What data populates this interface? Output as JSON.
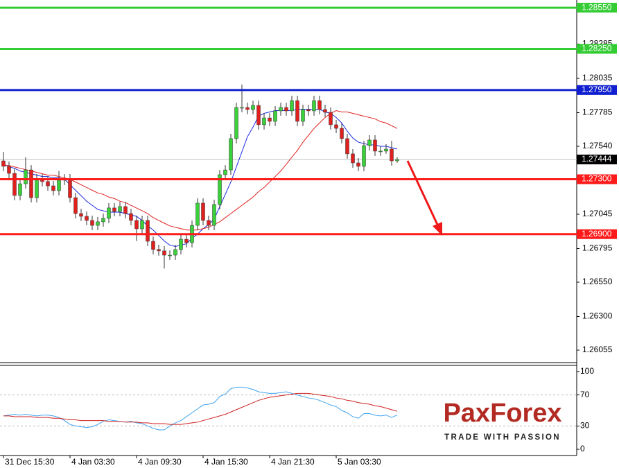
{
  "chart_data": [
    {
      "type": "candlestick",
      "categories": [
        "31 Dec 15:30",
        null,
        null,
        null,
        null,
        null,
        null,
        null,
        null,
        null,
        null,
        null,
        "4 Jan 03:30",
        null,
        null,
        null,
        null,
        null,
        null,
        null,
        null,
        null,
        null,
        null,
        "4 Jan 09:30",
        null,
        null,
        null,
        null,
        null,
        null,
        null,
        null,
        null,
        null,
        null,
        "4 Jan 15:30",
        null,
        null,
        null,
        null,
        null,
        null,
        null,
        null,
        null,
        null,
        null,
        "4 Jan 21:30",
        null,
        null,
        null,
        null,
        null,
        null,
        null,
        null,
        null,
        null,
        null,
        "5 Jan 03:30",
        null,
        null,
        null,
        null,
        null,
        null,
        null,
        null,
        null,
        null,
        null
      ],
      "open": [
        1.27434,
        1.27394,
        1.27343,
        1.27182,
        1.27267,
        1.27368,
        1.27166,
        1.27303,
        1.27283,
        1.27252,
        1.27217,
        1.27293,
        1.27303,
        1.27166,
        1.2705,
        1.2703,
        1.27,
        1.26964,
        1.2699,
        1.27015,
        1.27091,
        1.27065,
        1.27101,
        1.2705,
        1.27,
        1.26939,
        1.27,
        1.26848,
        1.26788,
        1.26778,
        1.26747,
        1.26747,
        1.26788,
        1.26863,
        1.26838,
        1.26964,
        1.27126,
        1.27,
        1.26964,
        1.27116,
        1.27333,
        1.27368,
        1.27596,
        1.27823,
        1.27823,
        1.27808,
        1.27838,
        1.27697,
        1.27747,
        1.27722,
        1.27798,
        1.27823,
        1.27798,
        1.27873,
        1.27722,
        1.27808,
        1.27798,
        1.27873,
        1.27808,
        1.27788,
        1.27697,
        1.27671,
        1.27596,
        1.27485,
        1.27419,
        1.27394,
        1.27545,
        1.27586,
        1.27505,
        1.27505,
        1.2752,
        1.27434
      ],
      "high": [
        1.275,
        1.27429,
        1.27378,
        1.27302,
        1.2746,
        1.27403,
        1.27338,
        1.27338,
        1.27318,
        1.27287,
        1.2736,
        1.27338,
        1.27338,
        1.27201,
        1.27085,
        1.27065,
        1.27035,
        1.27025,
        1.2705,
        1.27126,
        1.27126,
        1.27136,
        1.27136,
        1.27085,
        1.27035,
        1.27035,
        1.27035,
        1.26883,
        1.26823,
        1.26813,
        1.26782,
        1.26823,
        1.26898,
        1.26898,
        1.26999,
        1.27161,
        1.27161,
        1.27035,
        1.27151,
        1.27368,
        1.27403,
        1.27631,
        1.27858,
        1.2799,
        1.27858,
        1.27873,
        1.27873,
        1.27782,
        1.27782,
        1.27833,
        1.27858,
        1.27858,
        1.27908,
        1.27908,
        1.27843,
        1.27843,
        1.27908,
        1.27908,
        1.27843,
        1.27823,
        1.27732,
        1.27706,
        1.27631,
        1.2752,
        1.27454,
        1.2758,
        1.27621,
        1.27621,
        1.2754,
        1.27555,
        1.2758,
        1.2746
      ],
      "low": [
        1.27359,
        1.27308,
        1.27147,
        1.27147,
        1.27232,
        1.27131,
        1.27131,
        1.27248,
        1.27217,
        1.27182,
        1.27182,
        1.27258,
        1.27131,
        1.27015,
        1.26995,
        1.26965,
        1.26929,
        1.26929,
        1.26955,
        1.2698,
        1.2703,
        1.2703,
        1.27015,
        1.26965,
        1.2685,
        1.26904,
        1.26813,
        1.26753,
        1.26743,
        1.2665,
        1.26712,
        1.26712,
        1.26753,
        1.26803,
        1.26803,
        1.26929,
        1.26965,
        1.26929,
        1.26929,
        1.27081,
        1.27298,
        1.27333,
        1.27561,
        1.27788,
        1.27773,
        1.27773,
        1.27662,
        1.27662,
        1.27687,
        1.27687,
        1.27763,
        1.27763,
        1.27763,
        1.27687,
        1.27687,
        1.27763,
        1.27763,
        1.27773,
        1.27753,
        1.27662,
        1.27636,
        1.27561,
        1.2745,
        1.27384,
        1.27359,
        1.27359,
        1.2751,
        1.2747,
        1.2747,
        1.27485,
        1.27399,
        1.2742
      ],
      "close": [
        1.27394,
        1.27343,
        1.27182,
        1.27267,
        1.27368,
        1.27166,
        1.27303,
        1.27283,
        1.27252,
        1.27217,
        1.27293,
        1.27303,
        1.27166,
        1.2705,
        1.2703,
        1.27,
        1.26964,
        1.2699,
        1.27015,
        1.27091,
        1.27065,
        1.27101,
        1.2705,
        1.27,
        1.26939,
        1.27,
        1.26848,
        1.26788,
        1.26778,
        1.26747,
        1.26747,
        1.26788,
        1.26863,
        1.26838,
        1.26964,
        1.27126,
        1.27,
        1.26964,
        1.27116,
        1.27333,
        1.27368,
        1.27596,
        1.27823,
        1.27823,
        1.27808,
        1.27838,
        1.27697,
        1.27747,
        1.27722,
        1.27798,
        1.27823,
        1.27798,
        1.27873,
        1.27722,
        1.27808,
        1.27798,
        1.27873,
        1.27808,
        1.27788,
        1.27697,
        1.27671,
        1.27596,
        1.27485,
        1.27419,
        1.27394,
        1.27545,
        1.27586,
        1.27505,
        1.27505,
        1.2752,
        1.27434,
        1.27444
      ],
      "up_color": "#3ad13a",
      "down_color": "#e0201e",
      "series": [
        {
          "color": "#1a2be0",
          "values": [
            1.2741,
            1.2739,
            1.2738,
            1.2736,
            1.2735,
            1.2734,
            1.2733,
            1.2732,
            1.2732,
            1.2731,
            1.2731,
            1.273,
            1.2726,
            1.2722,
            1.2718,
            1.2714,
            1.2711,
            1.2708,
            1.2707,
            1.2706,
            1.2706,
            1.2706,
            1.2705,
            1.2704,
            1.2703,
            1.27,
            1.2696,
            1.2693,
            1.2689,
            1.2685,
            1.2682,
            1.2681,
            1.2682,
            1.2683,
            1.2687,
            1.269,
            1.2694,
            1.2697,
            1.2701,
            1.271,
            1.2719,
            1.2728,
            1.2739,
            1.275,
            1.2761,
            1.2768,
            1.2776,
            1.2778,
            1.2779,
            1.278,
            1.278,
            1.278,
            1.278,
            1.2781,
            1.2781,
            1.2781,
            1.2781,
            1.2781,
            1.2779,
            1.2778,
            1.2775,
            1.2771,
            1.2765,
            1.276,
            1.2757,
            1.2756,
            1.2755,
            1.2755,
            1.2754,
            1.2754,
            1.2753,
            1.2752
          ]
        },
        {
          "color": "#e02020",
          "values": [
            1.274,
            1.274,
            1.2739,
            1.2738,
            1.2737,
            1.2736,
            1.2735,
            1.2734,
            1.2733,
            1.2733,
            1.2732,
            1.2731,
            1.273,
            1.2728,
            1.2726,
            1.2724,
            1.2722,
            1.272,
            1.2719,
            1.2717,
            1.2716,
            1.2714,
            1.2713,
            1.2711,
            1.2709,
            1.2707,
            1.2705,
            1.2702,
            1.27,
            1.2698,
            1.2696,
            1.2695,
            1.2694,
            1.2693,
            1.2693,
            1.2693,
            1.2694,
            1.2695,
            1.2697,
            1.2699,
            1.2702,
            1.2705,
            1.2708,
            1.2711,
            1.2714,
            1.2717,
            1.2721,
            1.2724,
            1.2728,
            1.2732,
            1.2736,
            1.2741,
            1.2746,
            1.2751,
            1.2757,
            1.2762,
            1.2767,
            1.2771,
            1.2775,
            1.2778,
            1.278,
            1.2779,
            1.2779,
            1.2778,
            1.2777,
            1.2776,
            1.2775,
            1.2774,
            1.2772,
            1.2771,
            1.2769,
            1.2767
          ]
        }
      ],
      "ylim": [
        1.25964,
        1.28606
      ],
      "yticks": [
        1.28285,
        1.28035,
        {
          "value": 1.27785,
          "label": "1.27785"
        },
        {
          "value": 1.2754,
          "label": "1.27540"
        },
        1.27045,
        1.26795,
        {
          "value": 1.2655,
          "label": "1.26550"
        },
        {
          "value": 1.263,
          "label": "1.26300"
        },
        1.26055
      ],
      "levels": [
        {
          "value": 1.2855,
          "label": "1.28550",
          "color": "#33cc33"
        },
        {
          "value": 1.2825,
          "label": "1.28250",
          "color": "#33cc33"
        },
        {
          "value": 1.2795,
          "label": "1.27950",
          "color": "#1020d0"
        },
        {
          "value": 1.273,
          "label": "1.27300",
          "color": "#ff1a1a"
        },
        {
          "value": 1.269,
          "label": "1.26900",
          "color": "#ff1a1a"
        }
      ],
      "last_price": {
        "value": 1.27444,
        "label": "1.27444",
        "color": "#c0c0c0"
      }
    },
    {
      "type": "line",
      "series": [
        {
          "color": "#3fa3f0",
          "values": [
            43,
            44,
            45,
            44,
            45,
            44,
            43,
            44,
            44,
            43,
            41,
            37,
            32,
            30,
            29,
            28,
            29,
            32,
            36,
            38,
            37,
            36,
            35,
            36,
            34,
            33,
            30,
            27,
            25,
            25,
            30,
            34,
            37,
            42,
            47,
            52,
            57,
            58,
            60,
            68,
            71,
            78,
            80,
            80,
            79,
            77,
            74,
            73,
            72,
            72,
            73,
            74,
            72,
            70,
            68,
            66,
            65,
            63,
            60,
            57,
            55,
            50,
            47,
            42,
            40,
            46,
            46,
            44,
            43,
            44,
            41,
            44
          ]
        },
        {
          "color": "#d02020",
          "values": [
            43,
            43,
            42,
            42,
            42,
            42,
            41,
            41,
            41,
            40,
            40,
            39,
            38,
            38,
            37,
            37,
            37,
            37,
            37,
            36,
            36,
            36,
            35,
            35,
            35,
            34,
            34,
            33,
            33,
            33,
            32,
            32,
            32,
            33,
            34,
            35,
            37,
            39,
            41,
            43,
            45,
            48,
            51,
            54,
            57,
            60,
            63,
            65,
            67,
            68,
            69,
            70,
            71,
            72,
            72,
            72,
            71,
            70,
            69,
            68,
            66,
            65,
            63,
            62,
            60,
            59,
            58,
            56,
            55,
            53,
            51,
            49
          ]
        }
      ],
      "ylim": [
        -8,
        108
      ],
      "yticks": [
        100,
        70,
        30,
        0
      ],
      "grid": [
        70,
        30
      ]
    }
  ],
  "logo": {
    "name": "PaxForex",
    "tagline": "TRADE WITH PASSION"
  }
}
